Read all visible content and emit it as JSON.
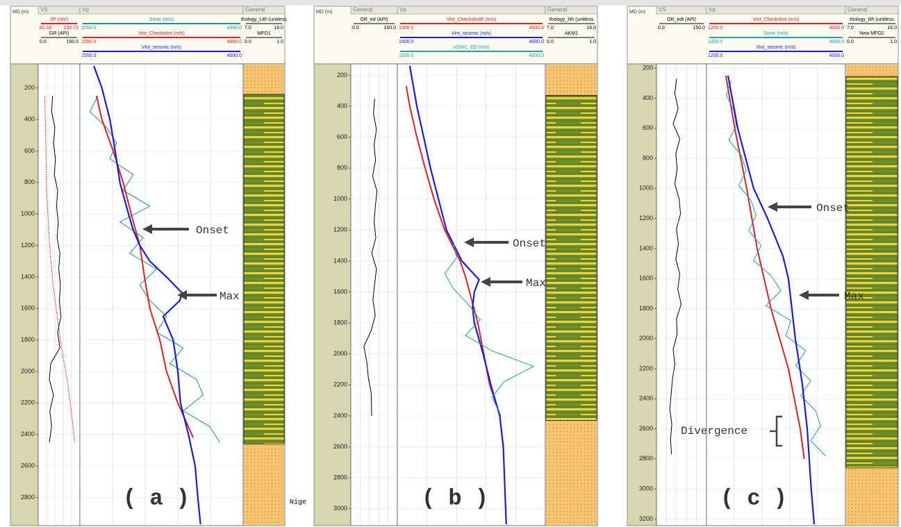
{
  "chart_data": [
    {
      "type": "well-log",
      "panel_label": "( a )",
      "depth_label": "MD (m)",
      "ylim": [
        60,
        2970
      ],
      "yticks": [
        200,
        400,
        600,
        800,
        1000,
        1200,
        1400,
        1600,
        1800,
        2000,
        2200,
        2400,
        2600,
        2800
      ],
      "annotations": [
        "Onset",
        "Max"
      ],
      "tracks": [
        {
          "title": "VS",
          "curves": [
            {
              "name": "SP (mV)",
              "color": "#e02020",
              "dash": true,
              "xlim": [
                82,
                230.72
              ],
              "xlim_labels": [
                "82.00",
                "230.72"
              ],
              "depth": [
                250,
                450,
                650,
                850,
                1050,
                1250,
                1450,
                1650,
                1850,
                2050,
                2250,
                2450
              ],
              "values": [
                105,
                108,
                110,
                112,
                118,
                125,
                135,
                150,
                165,
                185,
                200,
                212
              ]
            },
            {
              "name": "GR (API)",
              "color": "#000000",
              "xlim": [
                0,
                150
              ],
              "xlim_labels": [
                "0.0",
                "150.0"
              ],
              "depth": [
                250,
                350,
                450,
                550,
                650,
                750,
                850,
                950,
                1050,
                1150,
                1250,
                1350,
                1450,
                1550,
                1650,
                1750,
                1850,
                1950,
                2050,
                2150,
                2250,
                2350,
                2450
              ],
              "values": [
                52,
                48,
                60,
                55,
                62,
                58,
                70,
                66,
                72,
                68,
                78,
                74,
                80,
                76,
                82,
                70,
                78,
                45,
                40,
                55,
                42,
                48,
                40
              ]
            }
          ]
        },
        {
          "title": "Vp",
          "curves": [
            {
              "name": "Sonic (m/s)",
              "color": "#1f8f8f",
              "xlim": [
                1550,
                4000
              ],
              "xlim_labels": [
                "1550.0",
                "4000.0"
              ],
              "depth": [
                250,
                350,
                450,
                550,
                650,
                750,
                850,
                950,
                1050,
                1150,
                1250,
                1350,
                1450,
                1550,
                1650,
                1750,
                1850,
                1950,
                2050,
                2150,
                2250,
                2350,
                2450
              ],
              "values": [
                1820,
                1700,
                1950,
                2100,
                2000,
                2350,
                2200,
                2600,
                2150,
                2500,
                2300,
                2700,
                2450,
                2600,
                2850,
                2700,
                3100,
                2900,
                3300,
                3400,
                3100,
                3500,
                3650
              ]
            },
            {
              "name": "Vint_Checkshot (m/s)",
              "color": "#e02020",
              "xlim": [
                1550,
                4000
              ],
              "xlim_labels": [
                "1550.0",
                "4000.0"
              ],
              "depth": [
                250,
                400,
                600,
                800,
                1000,
                1200,
                1400,
                1600,
                1800,
                2000,
                2200,
                2420
              ],
              "values": [
                1800,
                1880,
                2050,
                2200,
                2320,
                2450,
                2520,
                2600,
                2750,
                2850,
                3020,
                3250
              ]
            },
            {
              "name": "Vint_seismic (m/s)",
              "color": "#1a1ae0",
              "xlim": [
                1550,
                4000
              ],
              "xlim_labels": [
                "1550.0",
                "4000.0"
              ],
              "depth": [
                60,
                200,
                400,
                600,
                800,
                1000,
                1100,
                1200,
                1300,
                1400,
                1500,
                1550,
                1650,
                1800,
                2000,
                2200,
                2400,
                2600,
                2800,
                2970
              ],
              "values": [
                1760,
                1880,
                2000,
                2080,
                2150,
                2280,
                2350,
                2450,
                2600,
                2850,
                3080,
                3050,
                2800,
                2950,
                3020,
                3060,
                3180,
                3280,
                3320,
                3360
              ]
            }
          ]
        },
        {
          "title": "General",
          "interval": [
            240,
            2460
          ],
          "curves": [
            {
              "name": "thology_Lith (unitless",
              "color": "#000000",
              "xlim": [
                7,
                16
              ],
              "xlim_labels": [
                "7.0",
                "16.0"
              ]
            },
            {
              "name": "MFO1",
              "color": "#000000",
              "xlim": [
                0,
                1
              ],
              "xlim_labels": [
                "0.0",
                "1.0"
              ]
            }
          ]
        }
      ]
    },
    {
      "type": "well-log",
      "panel_label": "( b )",
      "depth_label": "MD (m)",
      "ylim": [
        140,
        3100
      ],
      "yticks": [
        200,
        400,
        600,
        800,
        1000,
        1200,
        1400,
        1600,
        1800,
        2000,
        2200,
        2400,
        2600,
        2800,
        3000
      ],
      "annotations": [
        "Onset",
        "Max"
      ],
      "tracks": [
        {
          "title": "General",
          "curves": [
            {
              "name": "GR_ed (API)",
              "color": "#000000",
              "xlim": [
                0,
                160
              ],
              "xlim_labels": [
                "0.0",
                "160.0"
              ],
              "depth": [
                350,
                450,
                550,
                650,
                750,
                850,
                950,
                1050,
                1150,
                1250,
                1350,
                1450,
                1550,
                1650,
                1750,
                1850,
                1950,
                2050,
                2150,
                2250,
                2400
              ],
              "values": [
                82,
                78,
                88,
                80,
                85,
                75,
                90,
                84,
                80,
                86,
                72,
                88,
                82,
                76,
                84,
                70,
                45,
                55,
                60,
                70,
                72
              ]
            }
          ]
        },
        {
          "title": "Vp",
          "curves": [
            {
              "name": "Vint_CheckshotR (m/s)",
              "color": "#e02020",
              "xlim": [
                1500,
                4000
              ],
              "xlim_labels": [
                "1500.0",
                "4000.0"
              ],
              "depth": [
                270,
                400,
                600,
                800,
                1000,
                1200,
                1400,
                1500,
                1800,
                2000,
                2200,
                2400
              ],
              "values": [
                1650,
                1710,
                1830,
                1970,
                2120,
                2300,
                2560,
                2650,
                2860,
                2960,
                3060,
                3240
              ]
            },
            {
              "name": "Vint_seismic (m/s)",
              "color": "#1a1ae0",
              "xlim": [
                1500,
                4000
              ],
              "xlim_labels": [
                "1500.0",
                "4000.0"
              ],
              "depth": [
                140,
                400,
                800,
                1200,
                1400,
                1520,
                1600,
                1700,
                1800,
                2000,
                2200,
                2400,
                2600,
                3000,
                3100
              ],
              "values": [
                1710,
                1830,
                2060,
                2330,
                2590,
                2880,
                2800,
                2770,
                2800,
                2950,
                3080,
                3230,
                3290,
                3330,
                3340
              ]
            },
            {
              "name": "sONIC_ED (m/s)",
              "color": "#1f9f9f",
              "xlim": [
                1500,
                4000
              ],
              "xlim_labels": [
                "1500.0",
                "4000.0"
              ],
              "depth": [
                1280,
                1380,
                1480,
                1580,
                1680,
                1780,
                1880,
                1980,
                2080,
                2180,
                2280,
                2400
              ],
              "values": [
                2450,
                2500,
                2300,
                2450,
                2700,
                2900,
                2650,
                3100,
                3800,
                3300,
                3100,
                3250
              ]
            }
          ]
        },
        {
          "title": "General",
          "interval": [
            330,
            2430
          ],
          "curves": [
            {
              "name": "thology_lith (unitless",
              "color": "#000000",
              "xlim": [
                7,
                16
              ],
              "xlim_labels": [
                "7.0",
                "16.0"
              ]
            },
            {
              "name": "AKM1",
              "color": "#000000",
              "xlim": [
                0,
                1
              ],
              "xlim_labels": [
                "0.0",
                "1.0"
              ]
            }
          ]
        }
      ]
    },
    {
      "type": "well-log",
      "panel_label": "( c )",
      "depth_label": "MD (m)",
      "ylim": [
        185,
        3235
      ],
      "yticks": [
        200,
        400,
        600,
        800,
        1000,
        1200,
        1400,
        1600,
        1800,
        2000,
        2200,
        2400,
        2600,
        2800,
        3000,
        3200
      ],
      "annotations": [
        "Onset",
        "Max",
        "Divergence"
      ],
      "tracks": [
        {
          "title": "VS",
          "curves": [
            {
              "name": "GR_edt (API)",
              "color": "#000000",
              "xlim": [
                0,
                150
              ],
              "xlim_labels": [
                "0.0",
                "150.0"
              ],
              "depth": [
                270,
                370,
                470,
                570,
                670,
                770,
                870,
                970,
                1070,
                1170,
                1270,
                1370,
                1470,
                1570,
                1670,
                1770,
                1870,
                1970,
                2070,
                2170,
                2270,
                2370,
                2470,
                2570,
                2670,
                2770
              ],
              "values": [
                60,
                55,
                65,
                50,
                70,
                58,
                62,
                55,
                68,
                72,
                60,
                66,
                58,
                70,
                64,
                74,
                60,
                62,
                50,
                55,
                48,
                44,
                40,
                46,
                42,
                45
              ]
            }
          ]
        },
        {
          "title": "Vp",
          "curves": [
            {
              "name": "Vint_Checkshot (m/s)",
              "color": "#e02020",
              "xlim": [
                1200,
                4000
              ],
              "xlim_labels": [
                "1200.0",
                "4000.0"
              ],
              "depth": [
                250,
                600,
                1000,
                1400,
                1800,
                2200,
                2600,
                2800
              ],
              "values": [
                1590,
                1770,
                2010,
                2220,
                2500,
                2850,
                3090,
                3170
              ]
            },
            {
              "name": "Sonic (m/s)",
              "color": "#1f9f9f",
              "xlim": [
                1200,
                4000
              ],
              "xlim_labels": [
                "1200.0",
                "4000.0"
              ],
              "depth": [
                280,
                380,
                480,
                580,
                680,
                780,
                880,
                980,
                1080,
                1180,
                1280,
                1380,
                1480,
                1580,
                1680,
                1780,
                1880,
                1980,
                2080,
                2180,
                2280,
                2380,
                2480,
                2580,
                2680,
                2780
              ],
              "values": [
                1700,
                1600,
                1750,
                1800,
                1650,
                1900,
                2000,
                1850,
                2100,
                2200,
                2050,
                2300,
                2150,
                2500,
                2700,
                2400,
                2900,
                2800,
                3200,
                3000,
                3300,
                3100,
                3400,
                3500,
                3300,
                3600
              ]
            },
            {
              "name": "Vint_seismic (m/s)",
              "color": "#1a1ae0",
              "xlim": [
                1200,
                4000
              ],
              "xlim_labels": [
                "1200.0",
                "4000.0"
              ],
              "depth": [
                250,
                600,
                1000,
                1200,
                1450,
                1600,
                1800,
                2000,
                2300,
                2600,
                2800,
                3000,
                3235
              ],
              "values": [
                1634,
                1830,
                2150,
                2430,
                2740,
                2850,
                2920,
                2990,
                3130,
                3230,
                3270,
                3310,
                3370
              ]
            }
          ]
        },
        {
          "title": "General",
          "interval": [
            255,
            2860
          ],
          "curves": [
            {
              "name": "thology_lith (unitless",
              "color": "#000000",
              "xlim": [
                7,
                16
              ],
              "xlim_labels": [
                "7.0",
                "16.0"
              ]
            },
            {
              "name": "New MFO2",
              "color": "#000000",
              "xlim": [
                0,
                1
              ],
              "xlim_labels": [
                "0.0",
                "1.0"
              ]
            }
          ]
        }
      ]
    }
  ],
  "cutoff_text": "Nige"
}
